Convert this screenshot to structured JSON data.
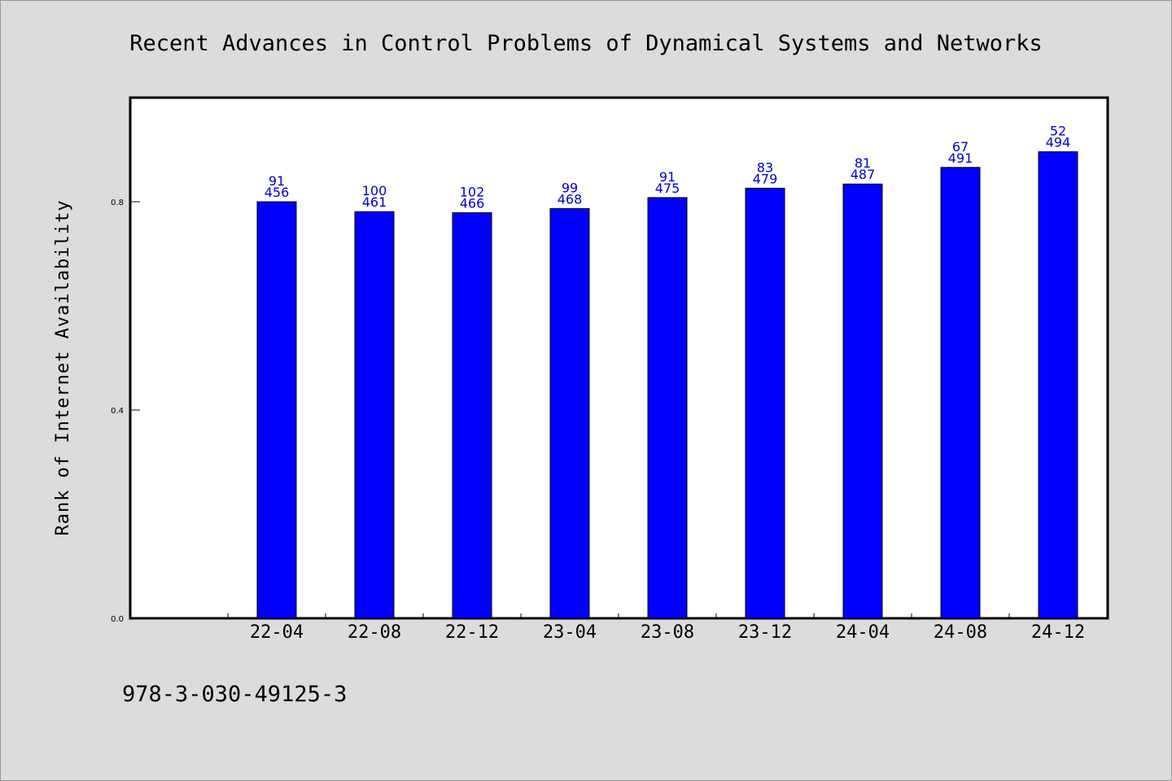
{
  "chart_data": {
    "type": "bar",
    "title": "Recent Advances in Control Problems of Dynamical Systems and Networks",
    "ylabel": "Rank of Internet Availability",
    "xlabel": "",
    "categories": [
      "22-04",
      "22-08",
      "22-12",
      "23-04",
      "23-08",
      "23-12",
      "24-04",
      "24-08",
      "24-12"
    ],
    "series": [
      {
        "values": [
          0.8,
          0.781,
          0.779,
          0.787,
          0.808,
          0.826,
          0.834,
          0.866,
          0.896
        ],
        "labels_top": [
          "91",
          "100",
          "102",
          "99",
          "91",
          "83",
          "81",
          "67",
          "52"
        ],
        "labels_bottom": [
          "456",
          "461",
          "466",
          "468",
          "475",
          "479",
          "487",
          "491",
          "494"
        ]
      }
    ],
    "ylim": [
      0,
      1.0
    ],
    "yticks": [
      0.0,
      0.4,
      0.8
    ],
    "ytick_labels": [
      "0.0",
      "0.4",
      "0.8"
    ],
    "grid": false,
    "bar_color": "#0000ff",
    "background_color": "#dcdcdc",
    "plot_background": "#ffffff"
  },
  "footer": {
    "isbn": "978-3-030-49125-3"
  }
}
